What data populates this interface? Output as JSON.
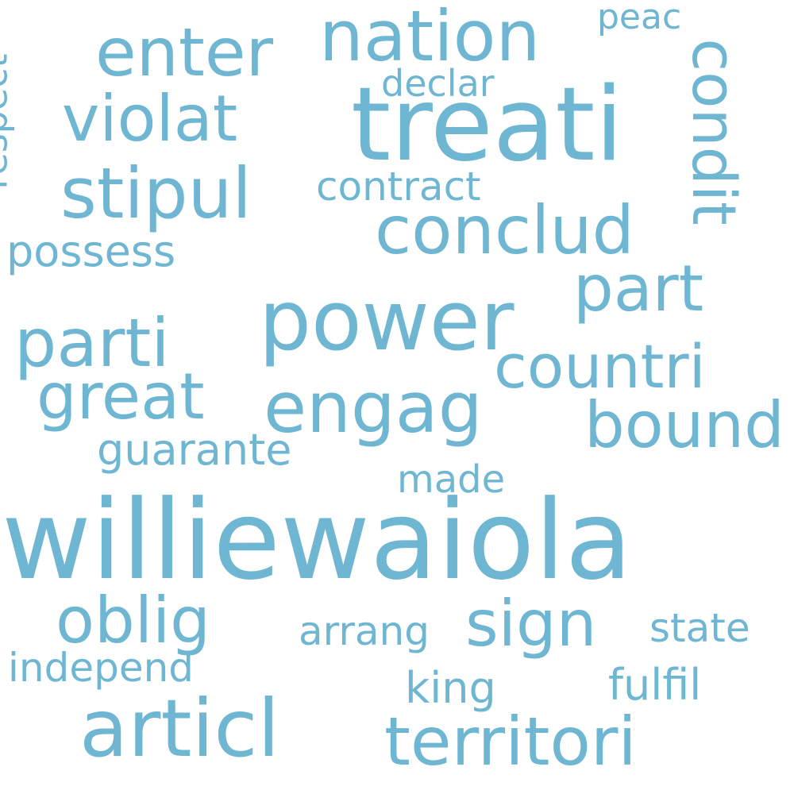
{
  "word_cloud": {
    "color": "#6fb6d3",
    "words": [
      {
        "id": "williewaiola",
        "text": "williewaiola"
      },
      {
        "id": "treati",
        "text": "treati"
      },
      {
        "id": "power",
        "text": "power"
      },
      {
        "id": "articl",
        "text": "articl"
      },
      {
        "id": "territori",
        "text": "territori"
      },
      {
        "id": "nation",
        "text": "nation"
      },
      {
        "id": "enter",
        "text": "enter"
      },
      {
        "id": "violat",
        "text": "violat"
      },
      {
        "id": "stipul",
        "text": "stipul"
      },
      {
        "id": "conclud",
        "text": "conclud"
      },
      {
        "id": "condit",
        "text": "condit"
      },
      {
        "id": "part",
        "text": "part"
      },
      {
        "id": "parti",
        "text": "parti"
      },
      {
        "id": "countri",
        "text": "countri"
      },
      {
        "id": "great",
        "text": "great"
      },
      {
        "id": "engag",
        "text": "engag"
      },
      {
        "id": "bound",
        "text": "bound"
      },
      {
        "id": "oblig",
        "text": "oblig"
      },
      {
        "id": "sign",
        "text": "sign"
      },
      {
        "id": "guarante",
        "text": "guarante"
      },
      {
        "id": "possess",
        "text": "possess"
      },
      {
        "id": "contract",
        "text": "contract"
      },
      {
        "id": "declar",
        "text": "declar"
      },
      {
        "id": "peac",
        "text": "peac"
      },
      {
        "id": "respect",
        "text": "respect"
      },
      {
        "id": "made",
        "text": "made"
      },
      {
        "id": "arrang",
        "text": "arrang"
      },
      {
        "id": "state",
        "text": "state"
      },
      {
        "id": "independ",
        "text": "independ"
      },
      {
        "id": "king",
        "text": "king"
      },
      {
        "id": "fulfil",
        "text": "fulfil"
      }
    ]
  }
}
